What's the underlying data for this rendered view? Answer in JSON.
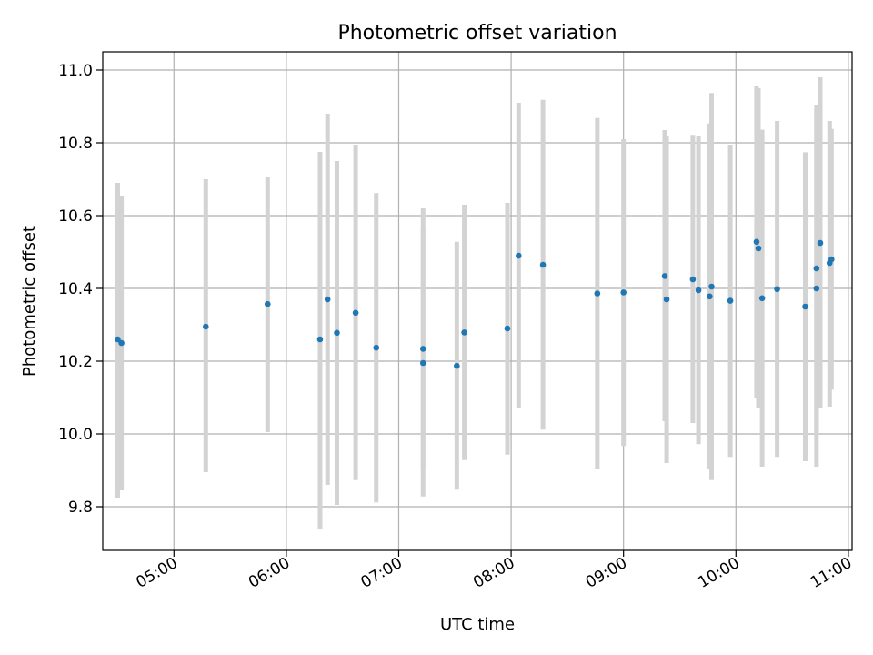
{
  "chart_data": {
    "type": "scatter",
    "title": "Photometric offset variation",
    "xlabel": "UTC time",
    "ylabel": "Photometric offset",
    "grid": true,
    "xlim": [
      "04:22",
      "11:02"
    ],
    "ylim": [
      9.68,
      11.05
    ],
    "x_ticks": [
      "05:00",
      "06:00",
      "07:00",
      "08:00",
      "09:00",
      "10:00",
      "11:00"
    ],
    "y_ticks": [
      9.8,
      10.0,
      10.2,
      10.4,
      10.6,
      10.8,
      11.0
    ],
    "y_tick_labels": [
      "9.8",
      "10.0",
      "10.2",
      "10.4",
      "10.6",
      "10.8",
      "11.0"
    ],
    "point_color": "#1f77b4",
    "errorbar_color": "#d3d3d3",
    "points": [
      {
        "x": "04:30",
        "y": 10.26,
        "err_low": 9.825,
        "err_high": 10.69
      },
      {
        "x": "04:32",
        "y": 10.25,
        "err_low": 9.845,
        "err_high": 10.655
      },
      {
        "x": "05:17",
        "y": 10.295,
        "err_low": 9.895,
        "err_high": 10.7
      },
      {
        "x": "05:50",
        "y": 10.357,
        "err_low": 10.005,
        "err_high": 10.705
      },
      {
        "x": "06:18",
        "y": 10.26,
        "err_low": 9.74,
        "err_high": 10.775
      },
      {
        "x": "06:22",
        "y": 10.37,
        "err_low": 9.86,
        "err_high": 10.88
      },
      {
        "x": "06:27",
        "y": 10.278,
        "err_low": 9.805,
        "err_high": 10.75
      },
      {
        "x": "06:37",
        "y": 10.333,
        "err_low": 9.873,
        "err_high": 10.795
      },
      {
        "x": "06:48",
        "y": 10.237,
        "err_low": 9.812,
        "err_high": 10.662
      },
      {
        "x": "07:13",
        "y": 10.234,
        "err_low": 9.905,
        "err_high": 10.565
      },
      {
        "x": "07:13",
        "y": 10.195,
        "err_low": 9.828,
        "err_high": 10.62
      },
      {
        "x": "07:31",
        "y": 10.187,
        "err_low": 9.847,
        "err_high": 10.528
      },
      {
        "x": "07:35",
        "y": 10.279,
        "err_low": 9.928,
        "err_high": 10.63
      },
      {
        "x": "07:58",
        "y": 10.29,
        "err_low": 9.943,
        "err_high": 10.635
      },
      {
        "x": "08:04",
        "y": 10.49,
        "err_low": 10.07,
        "err_high": 10.91
      },
      {
        "x": "08:17",
        "y": 10.465,
        "err_low": 10.012,
        "err_high": 10.918
      },
      {
        "x": "08:46",
        "y": 10.386,
        "err_low": 9.903,
        "err_high": 10.868
      },
      {
        "x": "09:00",
        "y": 10.389,
        "err_low": 9.967,
        "err_high": 10.81
      },
      {
        "x": "09:22",
        "y": 10.434,
        "err_low": 10.035,
        "err_high": 10.835
      },
      {
        "x": "09:23",
        "y": 10.37,
        "err_low": 9.92,
        "err_high": 10.82
      },
      {
        "x": "09:37",
        "y": 10.425,
        "err_low": 10.03,
        "err_high": 10.822
      },
      {
        "x": "09:40",
        "y": 10.395,
        "err_low": 9.972,
        "err_high": 10.818
      },
      {
        "x": "09:46",
        "y": 10.378,
        "err_low": 9.903,
        "err_high": 10.853
      },
      {
        "x": "09:47",
        "y": 10.405,
        "err_low": 9.873,
        "err_high": 10.937
      },
      {
        "x": "09:57",
        "y": 10.366,
        "err_low": 9.937,
        "err_high": 10.795
      },
      {
        "x": "10:11",
        "y": 10.528,
        "err_low": 10.1,
        "err_high": 10.957
      },
      {
        "x": "10:12",
        "y": 10.51,
        "err_low": 10.07,
        "err_high": 10.95
      },
      {
        "x": "10:14",
        "y": 10.373,
        "err_low": 9.91,
        "err_high": 10.836
      },
      {
        "x": "10:22",
        "y": 10.398,
        "err_low": 9.937,
        "err_high": 10.86
      },
      {
        "x": "10:37",
        "y": 10.35,
        "err_low": 9.925,
        "err_high": 10.774
      },
      {
        "x": "10:43",
        "y": 10.4,
        "err_low": 9.91,
        "err_high": 10.89
      },
      {
        "x": "10:43",
        "y": 10.455,
        "err_low": 10.005,
        "err_high": 10.905
      },
      {
        "x": "10:45",
        "y": 10.525,
        "err_low": 10.07,
        "err_high": 10.98
      },
      {
        "x": "10:50",
        "y": 10.47,
        "err_low": 10.075,
        "err_high": 10.86
      },
      {
        "x": "10:51",
        "y": 10.48,
        "err_low": 10.122,
        "err_high": 10.838
      }
    ]
  }
}
